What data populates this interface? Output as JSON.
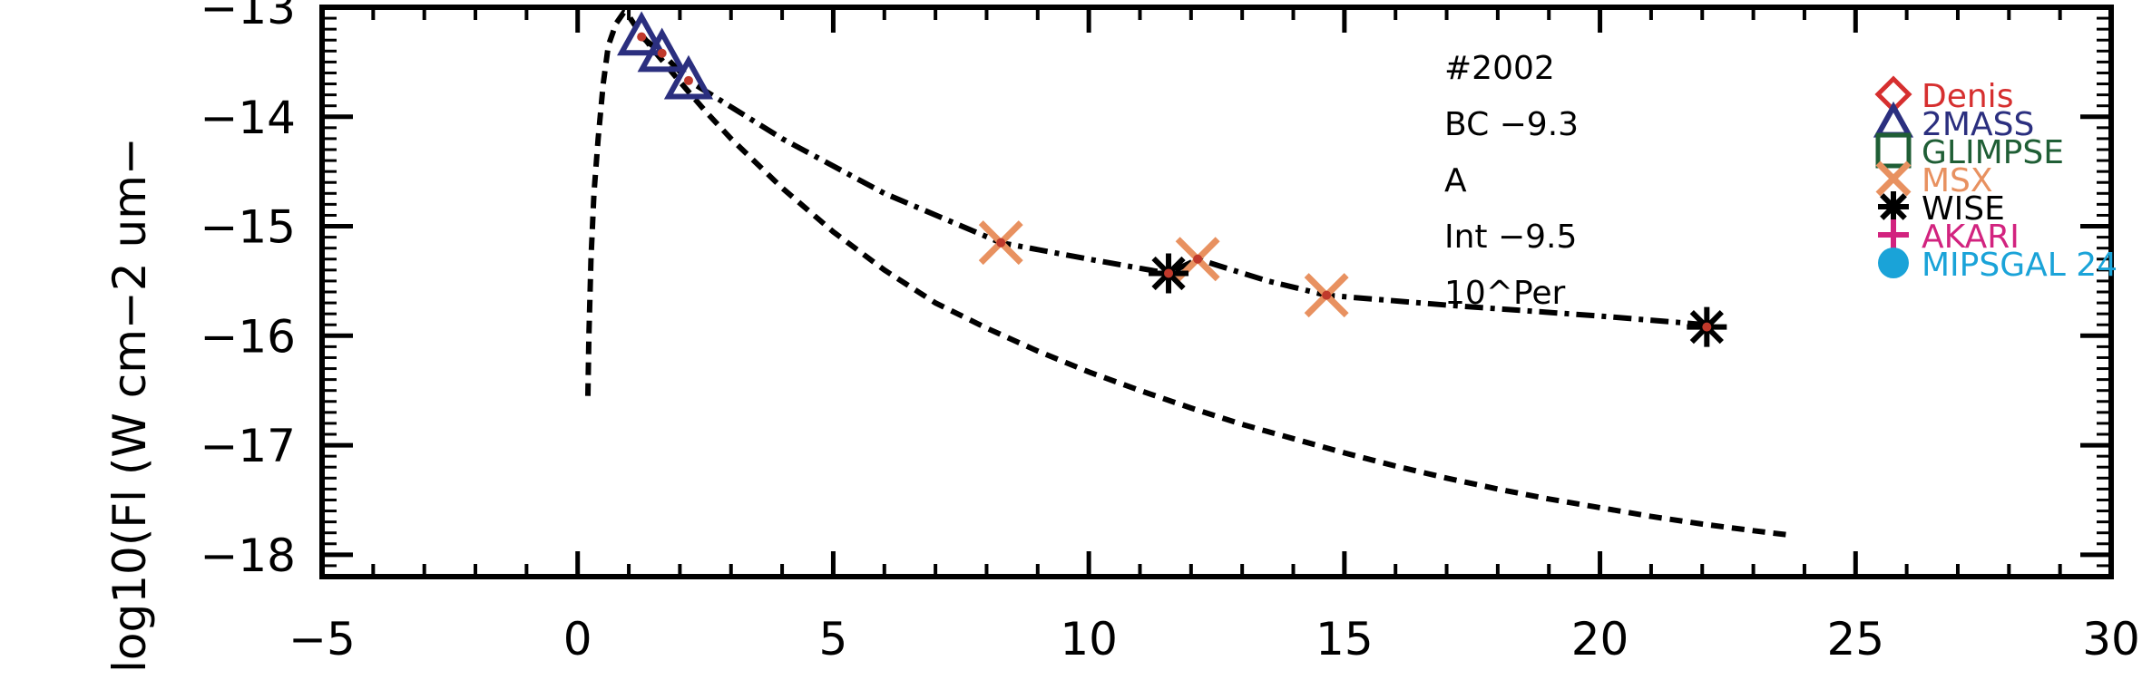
{
  "chart_data": {
    "type": "scatter",
    "ylabel": "log10(Fl (W cm−2 um−",
    "xlim": [
      -5,
      30
    ],
    "ylim": [
      -18.2,
      -13.0
    ],
    "x_ticks": [
      -5,
      0,
      5,
      10,
      15,
      20,
      25,
      30
    ],
    "x_tick_labels": [
      "−5",
      "0",
      "5",
      "10",
      "15",
      "20",
      "25",
      "30"
    ],
    "y_ticks": [
      -18,
      -17,
      -16,
      -15,
      -14,
      -13
    ],
    "y_tick_labels": [
      "−18",
      "−17",
      "−16",
      "−15",
      "−14",
      "−13"
    ],
    "annotations": [
      "#2002",
      "BC −9.3",
      "A",
      "Int −9.5",
      "10^Per"
    ],
    "legend": [
      {
        "name": "Denis",
        "color": "#d62f2f",
        "marker": "diamond"
      },
      {
        "name": "2MASS",
        "color": "#2b2f7f",
        "marker": "triangle"
      },
      {
        "name": "GLIMPSE",
        "color": "#1f5e35",
        "marker": "square"
      },
      {
        "name": "MSX",
        "color": "#e89160",
        "marker": "x"
      },
      {
        "name": "WISE",
        "color": "#000000",
        "marker": "asterisk"
      },
      {
        "name": "AKARI",
        "color": "#d2237f",
        "marker": "plus"
      },
      {
        "name": "MIPSGAL 24",
        "color": "#1aa3d8",
        "marker": "circle"
      }
    ],
    "series": [
      {
        "name": "2MASS",
        "marker": "triangle",
        "color": "#2b2f7f",
        "x": [
          1.25,
          1.65,
          2.17
        ],
        "y": [
          -13.27,
          -13.42,
          -13.67
        ]
      },
      {
        "name": "MSX",
        "marker": "x",
        "color": "#e89160",
        "x": [
          8.28,
          12.13,
          14.65
        ],
        "y": [
          -15.15,
          -15.3,
          -15.63
        ]
      },
      {
        "name": "WISE",
        "marker": "asterisk",
        "color": "#000000",
        "x": [
          11.56,
          22.09
        ],
        "y": [
          -15.43,
          -15.92
        ]
      }
    ],
    "lines": [
      {
        "style": "dash-dot",
        "color": "#000000",
        "x": [
          1.25,
          1.65,
          2.17,
          4.0,
          6.0,
          8.28,
          10.0,
          11.56,
          12.13,
          13.5,
          14.65,
          17.0,
          20.0,
          22.09
        ],
        "y": [
          -13.27,
          -13.42,
          -13.67,
          -14.2,
          -14.7,
          -15.15,
          -15.3,
          -15.43,
          -15.3,
          -15.5,
          -15.63,
          -15.72,
          -15.82,
          -15.9
        ]
      },
      {
        "style": "dashed",
        "color": "#000000",
        "x": [
          0.2,
          0.22,
          0.26,
          0.32,
          0.4,
          0.5,
          0.6,
          0.75,
          0.9,
          1.0,
          1.2,
          1.5,
          2.0,
          2.5,
          3.0,
          4.0,
          5.0,
          6.0,
          7.0,
          8.0,
          9.0,
          10.0,
          11.0,
          12.0,
          13.0,
          14.0,
          15.0,
          16.0,
          17.0,
          18.0,
          19.0,
          20.0,
          21.0,
          22.0,
          23.0,
          23.7
        ],
        "y": [
          -16.55,
          -16.0,
          -15.3,
          -14.7,
          -14.2,
          -13.7,
          -13.35,
          -13.15,
          -13.05,
          -13.08,
          -13.22,
          -13.4,
          -13.68,
          -13.95,
          -14.2,
          -14.65,
          -15.05,
          -15.4,
          -15.7,
          -15.93,
          -16.14,
          -16.33,
          -16.5,
          -16.66,
          -16.81,
          -16.94,
          -17.07,
          -17.19,
          -17.3,
          -17.4,
          -17.49,
          -17.57,
          -17.65,
          -17.72,
          -17.78,
          -17.82
        ]
      }
    ]
  }
}
